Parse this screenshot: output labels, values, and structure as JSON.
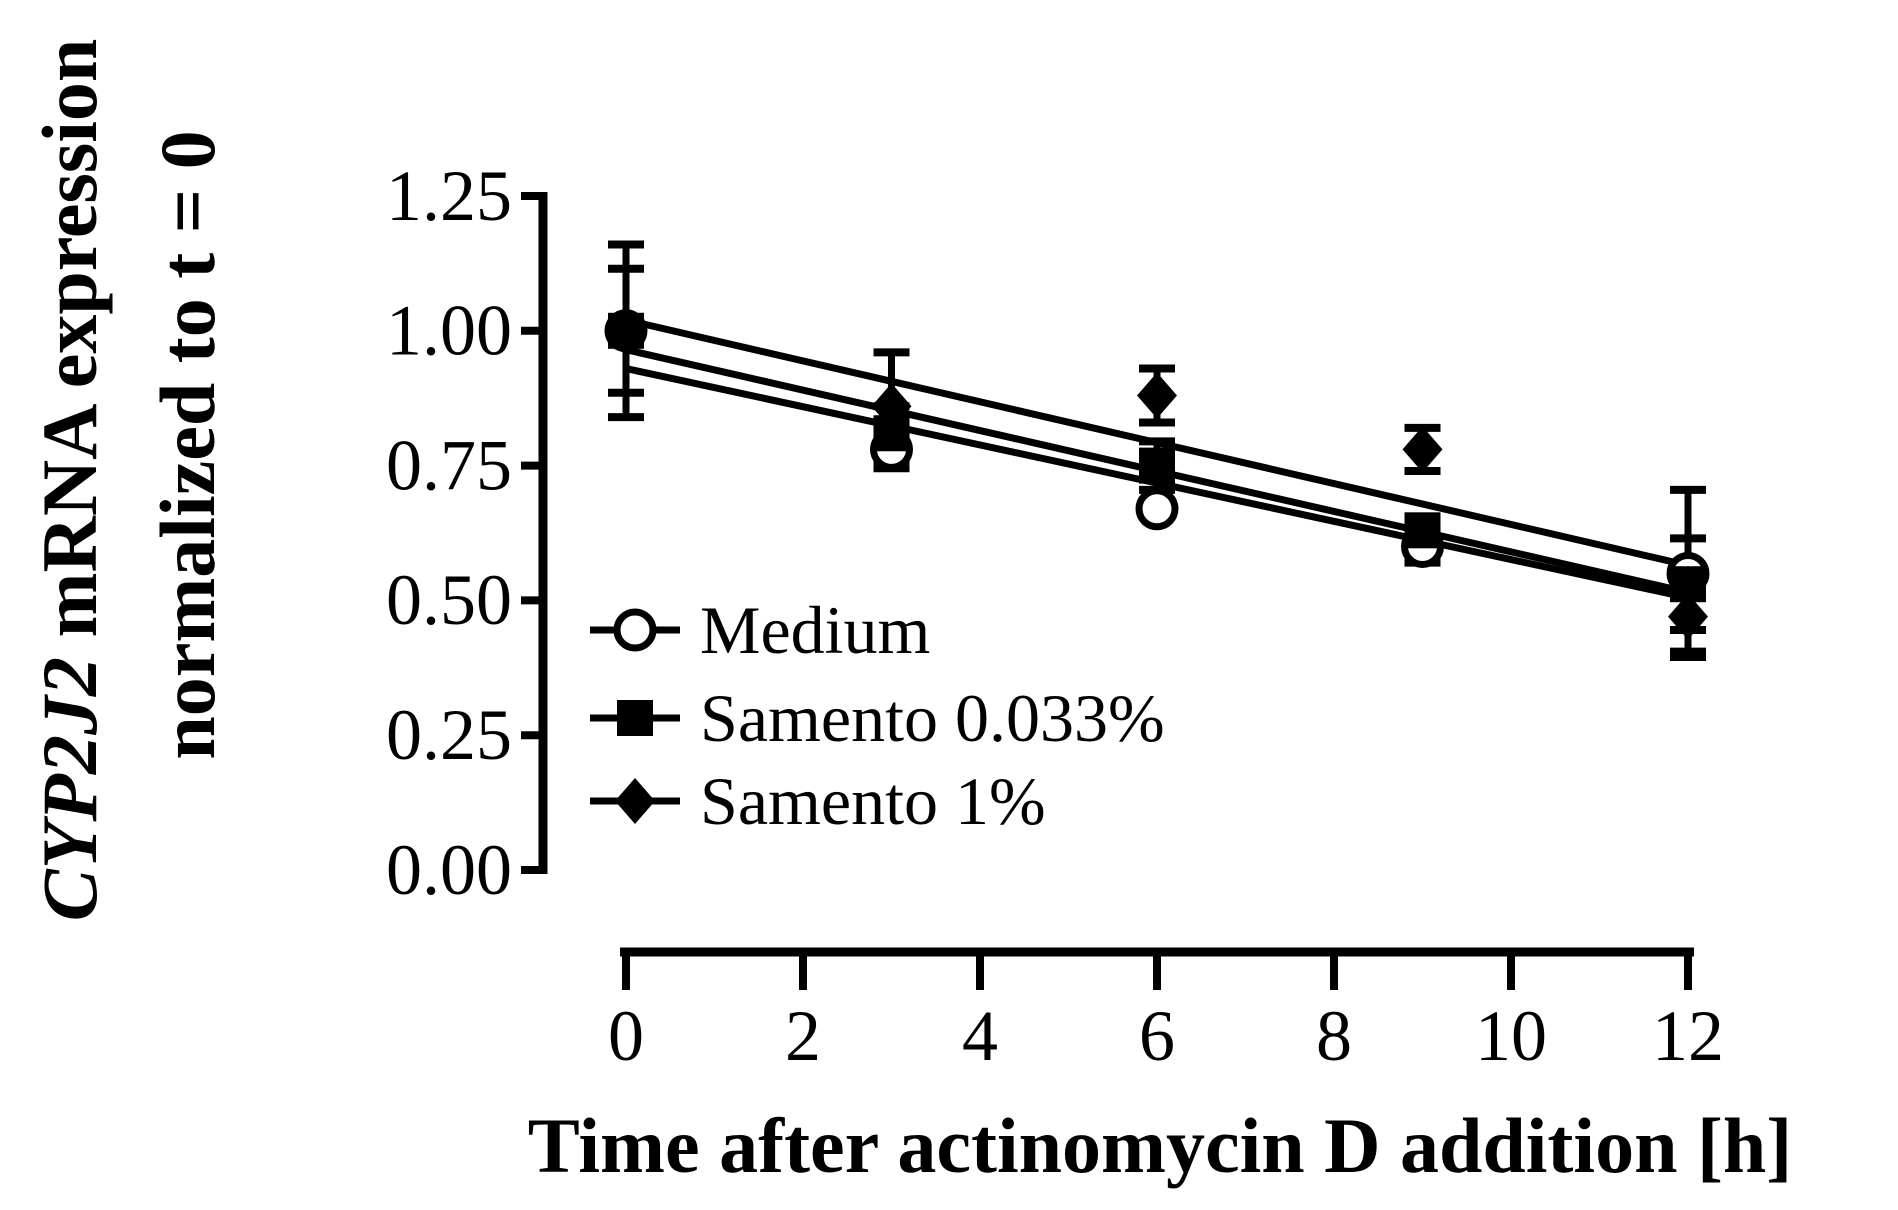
{
  "figure": {
    "background": "#ffffff",
    "ink": "#000000"
  },
  "chart_data": {
    "type": "scatter",
    "title": "",
    "xlabel": "Time after actinomycin D addition [h]",
    "ylabel_line1_italic": "CYP2J2",
    "ylabel_line1_rest": " mRNA expression",
    "ylabel_line2": "normalized to t = 0",
    "xlim": [
      0,
      12
    ],
    "ylim": [
      0.0,
      1.25
    ],
    "x_ticks": [
      0,
      2,
      4,
      6,
      8,
      10,
      12
    ],
    "y_ticks": [
      "1.25",
      "1.00",
      "0.75",
      "0.50",
      "0.25",
      "0.00"
    ],
    "grid": "off",
    "legend_position": "inside-lower-left",
    "x": [
      0,
      3,
      6,
      9,
      12
    ],
    "series": [
      {
        "name": "Medium",
        "marker": "open-circle",
        "values": [
          1.0,
          0.78,
          0.67,
          0.6,
          0.55
        ],
        "errors": [
          0.115,
          0.035,
          0,
          0.03,
          0.155
        ],
        "fit_line": {
          "y_at_x0": 0.93,
          "y_at_x12": 0.505
        }
      },
      {
        "name": "Samento 0.033%",
        "marker": "filled-square",
        "values": [
          1.0,
          0.81,
          0.75,
          0.63,
          0.53
        ],
        "errors": [
          0.16,
          0.05,
          0.045,
          0,
          0.085
        ],
        "fit_line": {
          "y_at_x0": 0.965,
          "y_at_x12": 0.515
        }
      },
      {
        "name": "Samento 1%",
        "marker": "filled-diamond",
        "values": [
          1.0,
          0.86,
          0.88,
          0.78,
          0.47
        ],
        "errors": [
          0,
          0.1,
          0.05,
          0.04,
          0.065
        ],
        "fit_line": {
          "y_at_x0": 1.02,
          "y_at_x12": 0.565
        }
      }
    ]
  }
}
